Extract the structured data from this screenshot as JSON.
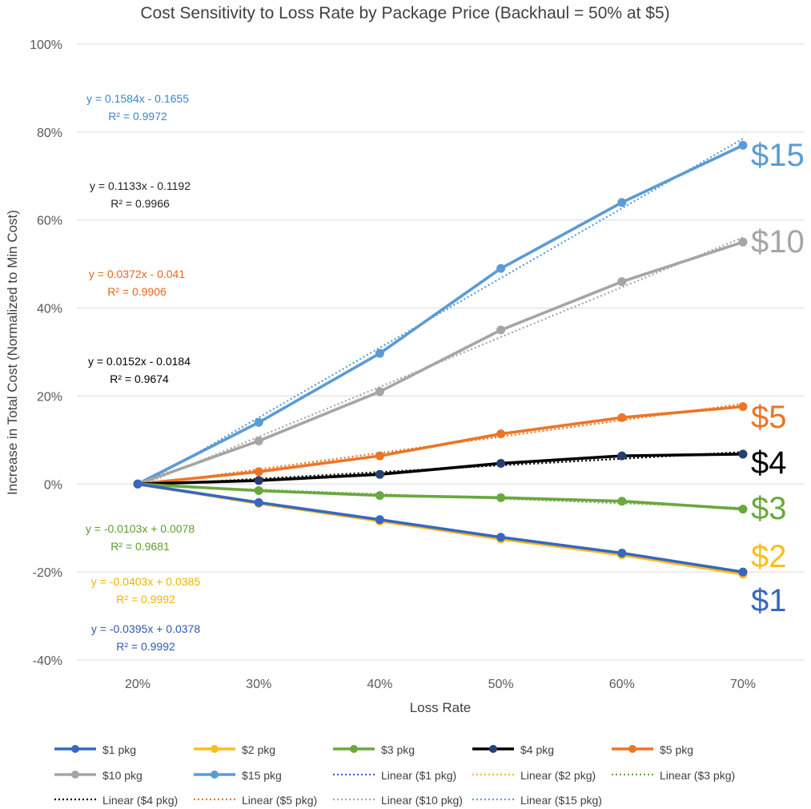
{
  "chart_data": {
    "type": "line",
    "title": "Cost Sensitivity to Loss Rate by Package Price (Backhaul = 50% at $5)",
    "xlabel": "Loss Rate",
    "ylabel": "Increase in Total Cost (Normalized to Min Cost)",
    "x": [
      "20%",
      "30%",
      "40%",
      "50%",
      "60%",
      "70%"
    ],
    "y_ticks": [
      "100%",
      "80%",
      "60%",
      "40%",
      "20%",
      "0%",
      "-20%",
      "-40%"
    ],
    "ylim": [
      -40,
      100
    ],
    "grid": true,
    "series": [
      {
        "name": "$1 pkg",
        "label": "$1",
        "color": "#3867c0",
        "values": [
          0,
          -4.2,
          -8.1,
          -12.1,
          -15.7,
          -20.0
        ],
        "trend_label": "Linear ($1 pkg)",
        "equation": "y = -0.0395x + 0.0378",
        "r2": "R² = 0.9992",
        "trend": [
          -0.0395,
          0.0378
        ]
      },
      {
        "name": "$2 pkg",
        "label": "$2",
        "color": "#fbbf1c",
        "values": [
          0,
          -4.4,
          -8.4,
          -12.5,
          -16.1,
          -20.5
        ],
        "trend_label": "Linear ($2 pkg)",
        "equation": "y = -0.0403x + 0.0385",
        "r2": "R² = 0.9992",
        "trend": [
          -0.0403,
          0.0385
        ]
      },
      {
        "name": "$3 pkg",
        "label": "$3",
        "color": "#6aa83e",
        "values": [
          0,
          -1.5,
          -2.6,
          -3.1,
          -3.9,
          -5.7
        ],
        "trend_label": "Linear ($3 pkg)",
        "equation": "y = -0.0103x + 0.0078",
        "r2": "R² = 0.9681",
        "trend": [
          -0.0103,
          0.0078
        ]
      },
      {
        "name": "$4 pkg",
        "label": "$4",
        "color": "#000000",
        "marker": "#253f70",
        "values": [
          0,
          0.8,
          2.2,
          4.7,
          6.4,
          6.8
        ],
        "trend_label": "Linear ($4 pkg)",
        "equation": "y = 0.0152x - 0.0184",
        "r2": "R² = 0.9674",
        "trend": [
          0.0152,
          -0.0184
        ]
      },
      {
        "name": "$5 pkg",
        "label": "$5",
        "color": "#ec7525",
        "values": [
          0,
          2.8,
          6.4,
          11.4,
          15.1,
          17.6
        ],
        "trend_label": "Linear ($5 pkg)",
        "equation": "y = 0.0372x - 0.041",
        "r2": "R² = 0.9906",
        "trend": [
          0.0372,
          -0.041
        ]
      },
      {
        "name": "$10 pkg",
        "label": "$10",
        "color": "#a5a5a5",
        "values": [
          0,
          9.8,
          21.0,
          35.0,
          46.0,
          55.0
        ],
        "trend_label": "Linear ($10 pkg)",
        "equation": "y = 0.1133x - 0.1192",
        "r2": "R² = 0.9966",
        "trend": [
          0.1133,
          -0.1192
        ]
      },
      {
        "name": "$15 pkg",
        "label": "$15",
        "color": "#5b9bd5",
        "values": [
          0,
          14.0,
          29.7,
          49.0,
          64.0,
          77.0
        ],
        "trend_label": "Linear ($15 pkg)",
        "equation": "y = 0.1584x - 0.1655",
        "r2": "R² = 0.9972",
        "trend": [
          0.1584,
          -0.1655
        ]
      }
    ],
    "equation_colors": {
      "$1": "#2f5aae",
      "$2": "#f0b400",
      "$3": "#5f9e2e",
      "$4": "#000000",
      "$5": "#e8661a",
      "$10": "#222222",
      "$15": "#3a86cf"
    }
  }
}
